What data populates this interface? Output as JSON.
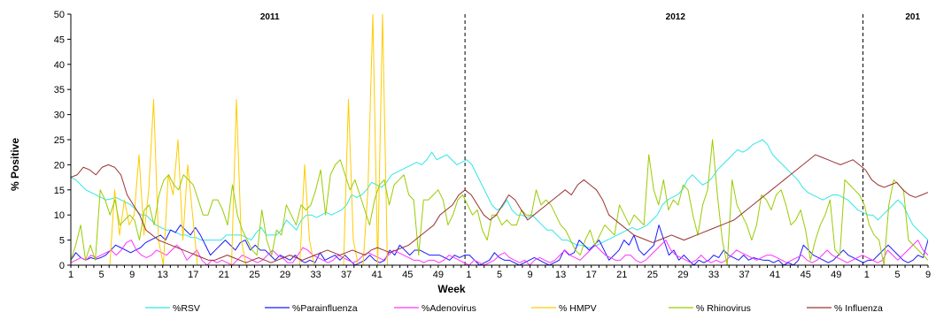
{
  "chart_data": {
    "type": "line",
    "xlabel": "Week",
    "ylabel": "% Positive",
    "ylim": [
      0,
      50
    ],
    "yticks": [
      0,
      5,
      10,
      15,
      20,
      25,
      30,
      35,
      40,
      45,
      50
    ],
    "grid": false,
    "legend": "bottom",
    "x_tick_labels": [
      "1",
      "5",
      "9",
      "13",
      "17",
      "21",
      "25",
      "29",
      "33",
      "37",
      "41",
      "45",
      "49",
      "1",
      "5",
      "9",
      "13",
      "17",
      "21",
      "25",
      "29",
      "33",
      "37",
      "41",
      "45",
      "49",
      "1",
      "5",
      "9"
    ],
    "x_tick_positions": [
      1,
      5,
      9,
      13,
      17,
      21,
      25,
      29,
      33,
      37,
      41,
      45,
      49,
      53,
      57,
      61,
      65,
      69,
      73,
      77,
      81,
      85,
      89,
      93,
      97,
      101,
      105,
      109,
      113
    ],
    "x_range": [
      1,
      113
    ],
    "year_annotations": [
      {
        "text": "2011",
        "x": 27
      },
      {
        "text": "2012",
        "x": 80
      },
      {
        "text": "201",
        "x": 111
      }
    ],
    "year_dividers": [
      52.5,
      104.5
    ],
    "series": [
      {
        "name": "%RSV",
        "color": "#33e6e6",
        "values": [
          17.5,
          17,
          16,
          15,
          14.5,
          14,
          13.5,
          13,
          13.2,
          13.5,
          13,
          12.5,
          12,
          11,
          10,
          10,
          9,
          8,
          7.5,
          7,
          7,
          6.5,
          6,
          6,
          5.5,
          5.5,
          5,
          5,
          5,
          5,
          5,
          6,
          6,
          6,
          6,
          5.5,
          5,
          6.5,
          7.5,
          6,
          6,
          6,
          7,
          9,
          8,
          7,
          9,
          10,
          10,
          9.5,
          10,
          10.5,
          10,
          10.5,
          11,
          12,
          14,
          13.5,
          14,
          15,
          16.5,
          16,
          15.5,
          16.5,
          18,
          18.5,
          19,
          19.5,
          20,
          20.5,
          20,
          21,
          22.5,
          21,
          21.5,
          22,
          21,
          20,
          20.5,
          21,
          20,
          18,
          16,
          14,
          12,
          11,
          11.5,
          13,
          11,
          10,
          10,
          9.5,
          10,
          9,
          8,
          7,
          7,
          6,
          5,
          5,
          4.5,
          4,
          4,
          3.5,
          3.5,
          4,
          4.5,
          5,
          5.5,
          6,
          6.5,
          7,
          7.5,
          7,
          7.5,
          8,
          9,
          10,
          12,
          13,
          13.5,
          14,
          15,
          17,
          18,
          17,
          16,
          16.5,
          17.5,
          19,
          20,
          21,
          22,
          23,
          22.5,
          23,
          24,
          24.5,
          25,
          24,
          22,
          21,
          20,
          19,
          18,
          17,
          15.5,
          14.5,
          14,
          13.5,
          13,
          13.5,
          14,
          14,
          13.5,
          13,
          12,
          11,
          10.5,
          10,
          10,
          9,
          10,
          11,
          12,
          13,
          12,
          10,
          8,
          7,
          6,
          5
        ]
      },
      {
        "name": "%Parainfluenza",
        "color": "#1a1aff",
        "values": [
          1,
          2.5,
          1.5,
          1,
          1.5,
          1.2,
          1.5,
          2,
          3,
          4,
          3.5,
          3,
          2.5,
          3,
          3.5,
          4.5,
          5,
          5.5,
          6,
          5,
          7,
          6.5,
          8,
          7,
          6,
          7.5,
          6,
          4,
          2,
          3,
          4,
          5,
          4,
          3,
          4.5,
          5,
          3,
          4,
          3,
          3,
          2,
          1,
          2,
          1.5,
          1,
          2,
          1,
          0.5,
          1,
          0.5,
          2.5,
          1,
          1.5,
          2,
          1,
          2,
          1,
          0,
          0.5,
          1,
          2,
          1,
          0.5,
          1,
          3,
          2,
          4,
          3,
          2,
          3,
          3,
          2.5,
          2,
          2,
          2,
          1.5,
          1,
          2,
          1.5,
          2,
          2,
          1,
          0,
          0.5,
          1,
          2.5,
          1.5,
          1,
          1,
          0.5,
          0,
          0.5,
          1,
          1.5,
          1,
          0.5,
          0,
          0.5,
          1,
          3,
          2,
          2.5,
          5,
          4,
          3,
          4,
          5,
          3,
          1,
          2,
          3,
          5,
          4,
          6,
          3,
          2,
          3,
          4,
          8,
          5,
          2,
          3,
          1,
          2,
          1,
          0,
          1,
          0.5,
          1,
          2,
          1.5,
          3,
          2,
          1.5,
          1,
          2,
          1,
          1.5,
          1.2,
          1,
          1,
          0.5,
          1,
          0,
          0.5,
          0,
          1,
          4,
          3,
          2,
          1.5,
          1,
          0.5,
          1,
          2,
          3,
          2,
          1.5,
          1,
          0.5,
          1,
          1,
          2,
          3,
          4,
          3,
          2,
          1,
          0.5,
          1,
          2,
          1.5,
          5
        ]
      },
      {
        "name": "%Adenovirus",
        "color": "#ff33ff",
        "values": [
          0.5,
          1,
          1.5,
          1,
          2,
          1.5,
          2,
          2.5,
          3,
          2,
          3,
          4.5,
          5,
          3,
          2,
          1.5,
          2,
          3,
          2.5,
          2,
          3,
          4,
          3,
          1,
          2,
          3,
          1,
          0,
          1,
          0.5,
          1,
          0.5,
          0,
          1,
          2,
          1.5,
          1,
          0.5,
          1,
          2,
          3,
          2,
          1.5,
          0.5,
          0.5,
          2,
          3.5,
          3,
          2,
          1.5,
          1,
          0.5,
          1,
          2,
          1.5,
          1,
          0.5,
          1,
          2,
          2.5,
          2,
          1.5,
          1,
          2,
          3,
          2.5,
          2,
          1.5,
          1,
          1,
          0.5,
          1,
          1,
          0.5,
          1,
          2,
          1.5,
          1,
          0.5,
          0,
          1,
          0.5,
          0,
          0.5,
          1,
          2,
          2.5,
          1.5,
          1,
          0.5,
          1,
          0,
          1,
          1.5,
          1,
          0.5,
          1,
          2,
          3,
          2,
          1.5,
          1,
          2,
          3,
          4,
          3,
          2,
          1.5,
          1,
          1,
          2,
          2,
          1,
          0.5,
          1,
          2,
          3,
          4,
          5,
          3,
          2,
          1.5,
          1,
          0.5,
          1,
          2,
          1,
          0.5,
          1,
          0.5,
          1,
          2,
          3,
          2.5,
          2,
          1.5,
          1,
          1.5,
          2,
          2,
          1.5,
          1,
          0.5,
          1,
          1.5,
          2,
          1,
          0.5,
          1,
          2,
          3,
          2,
          1.5,
          1,
          0.5,
          1,
          1.5,
          2,
          1.5,
          1,
          0.5,
          1,
          3,
          2,
          1,
          2,
          3,
          4,
          5,
          3,
          2
        ]
      },
      {
        "name": "% HMPV",
        "color": "#ffcc00",
        "values": [
          0,
          0,
          0,
          0,
          0,
          0,
          0,
          0,
          0,
          15,
          6,
          13,
          8,
          10,
          22,
          6,
          15,
          33,
          5,
          0,
          18,
          14,
          25,
          5,
          20,
          10,
          0,
          0,
          0,
          0,
          0,
          0,
          0,
          0,
          33,
          5,
          0,
          0,
          0,
          0,
          0,
          0,
          0,
          0,
          0,
          0,
          0,
          0,
          20,
          5,
          0,
          0,
          0,
          0,
          0,
          0,
          0,
          33,
          5,
          0,
          0,
          15,
          50,
          0,
          50,
          0,
          0,
          0,
          0,
          0,
          0,
          0,
          0,
          0,
          0,
          0,
          0,
          0,
          0,
          0,
          0,
          0,
          0,
          0,
          0,
          0,
          0,
          0,
          0,
          0,
          0,
          0,
          0,
          0,
          0,
          0,
          0,
          0,
          0,
          0,
          0,
          0,
          0,
          0,
          0,
          0,
          0,
          0,
          0,
          0,
          0,
          0,
          0,
          0,
          0,
          0,
          0,
          0,
          0,
          0,
          0,
          0,
          0,
          0,
          0,
          0,
          0,
          0,
          0,
          0,
          0,
          0,
          0,
          0,
          0,
          0,
          0,
          0,
          0,
          0,
          0,
          0,
          0,
          0,
          0,
          0,
          0,
          0,
          0,
          0,
          0,
          0,
          0,
          0,
          0,
          0,
          0,
          0,
          0,
          0,
          0,
          0,
          0,
          0,
          0,
          0,
          0,
          0,
          0,
          0,
          0,
          0,
          0,
          0,
          0,
          0,
          0
        ]
      },
      {
        "name": "% Rhinovirus",
        "color": "#99cc00",
        "values": [
          1,
          4,
          8,
          1,
          4,
          1,
          15,
          13,
          10,
          13,
          8,
          9,
          10,
          9,
          5,
          11,
          12,
          8,
          14,
          17,
          18,
          16,
          15,
          18,
          17,
          16,
          13,
          10,
          10,
          13,
          13,
          11,
          8,
          16,
          10,
          7,
          5,
          3,
          2,
          11,
          5,
          2,
          7,
          6,
          12,
          10,
          8,
          12,
          11,
          12,
          15,
          19,
          10,
          18,
          20,
          21,
          18,
          15,
          17,
          14,
          11,
          8,
          13,
          16,
          17,
          12,
          16,
          17,
          18,
          14,
          13,
          2,
          13,
          13,
          14,
          15,
          13,
          8,
          10,
          13,
          14,
          12,
          10,
          11,
          7,
          5,
          10,
          10,
          8,
          9,
          8,
          8,
          11,
          10,
          10,
          15,
          12,
          13,
          12,
          10,
          8,
          7,
          5,
          3,
          2,
          5,
          7,
          4,
          6,
          8,
          7,
          6,
          12,
          10,
          8,
          10,
          9,
          8,
          22,
          15,
          12,
          17,
          11,
          13,
          12,
          16,
          15,
          10,
          6,
          12,
          15,
          25,
          14,
          5,
          0,
          17,
          12,
          10,
          8,
          5,
          8,
          14,
          13,
          11,
          14,
          15,
          12,
          8,
          9,
          11,
          7,
          1,
          5,
          8,
          10,
          13,
          3,
          2,
          17,
          16,
          15,
          14,
          12,
          8,
          6,
          5,
          0,
          12,
          17,
          16,
          15,
          5,
          4,
          3,
          2,
          1
        ]
      },
      {
        "name": "% Influenza",
        "color": "#993333",
        "values": [
          17.5,
          18,
          19.5,
          19,
          18,
          19.5,
          20,
          19.5,
          18,
          14,
          12,
          10,
          7,
          6,
          5,
          4.5,
          4,
          3.5,
          3,
          2.5,
          2,
          1.5,
          1,
          1,
          1.5,
          2,
          1.5,
          1,
          0.5,
          1,
          1.5,
          1,
          0.5,
          1,
          1.5,
          2,
          1.5,
          1,
          1.5,
          2,
          2.5,
          3,
          2.5,
          2,
          2.5,
          3,
          2.5,
          2,
          3,
          3.5,
          3,
          2.5,
          3,
          3.5,
          4,
          5,
          6,
          7,
          8,
          10,
          11,
          12,
          14,
          15,
          14,
          12,
          10,
          9,
          10,
          12,
          14,
          13,
          11,
          9,
          10,
          11,
          12,
          13,
          14,
          15,
          14,
          16,
          17,
          16,
          15,
          13,
          10,
          9,
          8,
          7,
          6,
          5.5,
          5,
          4.5,
          5,
          5.5,
          6,
          5.5,
          5,
          5.5,
          6,
          6.5,
          7,
          7.5,
          8,
          8.5,
          9,
          10,
          11,
          12,
          13,
          14,
          15,
          16,
          17,
          18,
          19,
          20,
          21,
          22,
          21.5,
          21,
          20.5,
          20,
          20.5,
          21,
          20,
          19,
          17,
          16,
          15.5,
          16,
          16.5,
          15,
          14,
          13.5,
          14,
          14.5
        ]
      }
    ]
  }
}
